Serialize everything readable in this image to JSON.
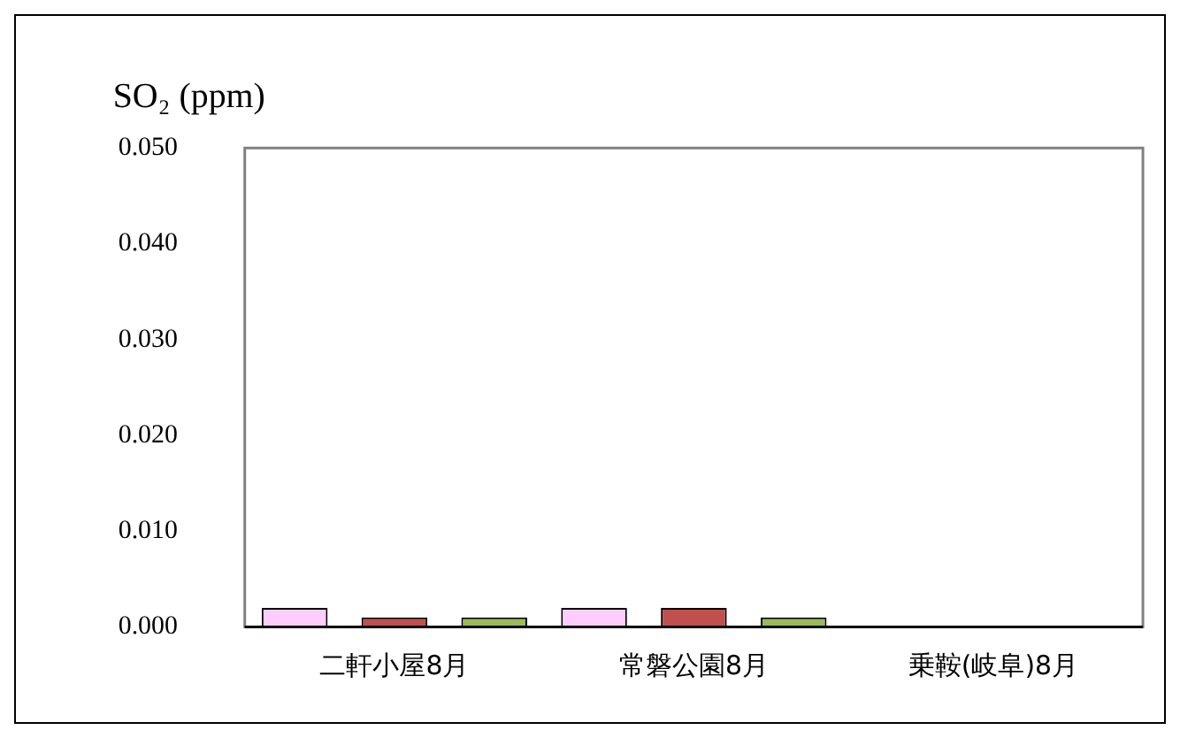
{
  "chart_data": {
    "type": "bar",
    "ylabel": "SO₂ (ppm)",
    "categories": [
      "二軒小屋8月",
      "常磐公園8月",
      "乗鞍(岐阜)8月"
    ],
    "series": [
      {
        "color": "#ffccff",
        "values": [
          0.002,
          0.002,
          null
        ]
      },
      {
        "color": "#c0504d",
        "values": [
          0.001,
          0.002,
          null
        ]
      },
      {
        "color": "#9bbb59",
        "values": [
          0.001,
          0.001,
          null
        ]
      }
    ],
    "ylim": [
      0,
      0.05
    ],
    "yticks": [
      {
        "value": 0,
        "label": "0.000"
      },
      {
        "value": 0.01,
        "label": "0.010"
      },
      {
        "value": 0.02,
        "label": "0.020"
      },
      {
        "value": 0.03,
        "label": "0.030"
      },
      {
        "value": 0.04,
        "label": "0.040"
      },
      {
        "value": 0.05,
        "label": "0.050"
      }
    ],
    "grid": false,
    "legend": false
  }
}
